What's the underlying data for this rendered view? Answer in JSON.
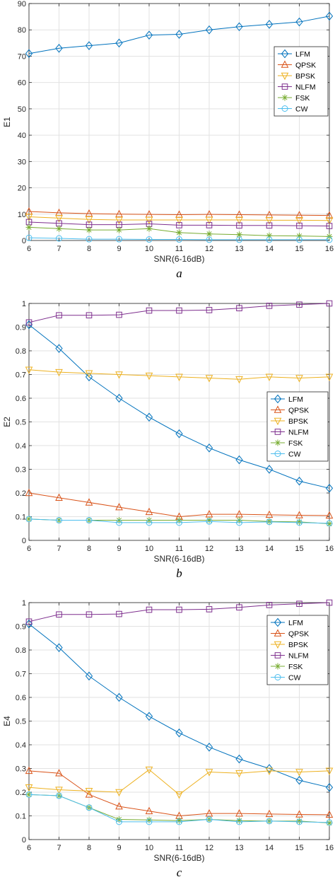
{
  "chart_data": [
    {
      "type": "line",
      "panel_label": "a",
      "xlabel": "SNR(6-16dB)",
      "ylabel": "E1",
      "xlim": [
        6,
        16
      ],
      "ylim": [
        0,
        90
      ],
      "xticks": [
        6,
        7,
        8,
        9,
        10,
        11,
        12,
        13,
        14,
        15,
        16
      ],
      "yticks": [
        0,
        10,
        20,
        30,
        40,
        50,
        60,
        70,
        80,
        90
      ],
      "grid": true,
      "legend_position": "right",
      "x": [
        6,
        7,
        8,
        9,
        10,
        11,
        12,
        13,
        14,
        15,
        16
      ],
      "series": [
        {
          "name": "LFM",
          "color": "#0072BD",
          "marker": "diamond",
          "values": [
            71,
            73,
            74,
            75,
            78,
            78.3,
            80,
            81.2,
            82.1,
            83,
            85.2
          ]
        },
        {
          "name": "QPSK",
          "color": "#D95319",
          "marker": "triangle-up",
          "values": [
            11,
            10.5,
            10.2,
            10,
            9.9,
            9.8,
            9.9,
            9.8,
            9.7,
            9.6,
            9.5
          ]
        },
        {
          "name": "BPSK",
          "color": "#EDB120",
          "marker": "triangle-down",
          "values": [
            9,
            8.5,
            8,
            7.8,
            7.8,
            7.8,
            7.8,
            7.8,
            7.7,
            7.7,
            7.6
          ]
        },
        {
          "name": "NLFM",
          "color": "#7E2F8E",
          "marker": "square",
          "values": [
            7,
            6.5,
            6,
            6,
            6.3,
            5.8,
            5.8,
            5.7,
            5.7,
            5.6,
            5.5
          ]
        },
        {
          "name": "FSK",
          "color": "#77AC30",
          "marker": "star",
          "values": [
            5,
            4.5,
            4,
            4,
            4.5,
            3,
            2.5,
            2.2,
            1.8,
            1.7,
            1.5
          ]
        },
        {
          "name": "CW",
          "color": "#4DBEEE",
          "marker": "circle",
          "values": [
            1,
            0.8,
            0.5,
            0.5,
            0.4,
            0.4,
            0.3,
            0.3,
            0.3,
            0.3,
            0.3
          ]
        }
      ]
    },
    {
      "type": "line",
      "panel_label": "b",
      "xlabel": "SNR(6-16dB)",
      "ylabel": "E2",
      "xlim": [
        6,
        16
      ],
      "ylim": [
        0,
        1
      ],
      "xticks": [
        6,
        7,
        8,
        9,
        10,
        11,
        12,
        13,
        14,
        15,
        16
      ],
      "yticks": [
        0,
        0.1,
        0.2,
        0.3,
        0.4,
        0.5,
        0.6,
        0.7,
        0.8,
        0.9,
        1
      ],
      "grid": true,
      "legend_position": "right",
      "x": [
        6,
        7,
        8,
        9,
        10,
        11,
        12,
        13,
        14,
        15,
        16
      ],
      "series": [
        {
          "name": "LFM",
          "color": "#0072BD",
          "marker": "diamond",
          "values": [
            0.91,
            0.81,
            0.69,
            0.6,
            0.52,
            0.45,
            0.39,
            0.34,
            0.3,
            0.25,
            0.22
          ]
        },
        {
          "name": "QPSK",
          "color": "#D95319",
          "marker": "triangle-up",
          "values": [
            0.2,
            0.18,
            0.16,
            0.14,
            0.12,
            0.1,
            0.11,
            0.11,
            0.108,
            0.106,
            0.105
          ]
        },
        {
          "name": "BPSK",
          "color": "#EDB120",
          "marker": "triangle-down",
          "values": [
            0.72,
            0.71,
            0.705,
            0.7,
            0.695,
            0.69,
            0.685,
            0.68,
            0.69,
            0.685,
            0.69
          ]
        },
        {
          "name": "NLFM",
          "color": "#7E2F8E",
          "marker": "square",
          "values": [
            0.92,
            0.95,
            0.95,
            0.952,
            0.97,
            0.97,
            0.972,
            0.98,
            0.99,
            0.995,
            1
          ]
        },
        {
          "name": "FSK",
          "color": "#77AC30",
          "marker": "star",
          "values": [
            0.09,
            0.085,
            0.085,
            0.085,
            0.085,
            0.085,
            0.085,
            0.085,
            0.08,
            0.078,
            0.07
          ]
        },
        {
          "name": "CW",
          "color": "#4DBEEE",
          "marker": "circle",
          "values": [
            0.09,
            0.085,
            0.085,
            0.075,
            0.075,
            0.075,
            0.08,
            0.075,
            0.078,
            0.075,
            0.072
          ]
        }
      ]
    },
    {
      "type": "line",
      "panel_label": "c",
      "xlabel": "SNR(6-16dB)",
      "ylabel": "E4",
      "xlim": [
        6,
        16
      ],
      "ylim": [
        0,
        1
      ],
      "xticks": [
        6,
        7,
        8,
        9,
        10,
        11,
        12,
        13,
        14,
        15,
        16
      ],
      "yticks": [
        0,
        0.1,
        0.2,
        0.3,
        0.4,
        0.5,
        0.6,
        0.7,
        0.8,
        0.9,
        1
      ],
      "grid": true,
      "legend_position": "top-right",
      "x": [
        6,
        7,
        8,
        9,
        10,
        11,
        12,
        13,
        14,
        15,
        16
      ],
      "series": [
        {
          "name": "LFM",
          "color": "#0072BD",
          "marker": "diamond",
          "values": [
            0.91,
            0.81,
            0.69,
            0.6,
            0.52,
            0.45,
            0.39,
            0.34,
            0.3,
            0.25,
            0.22
          ]
        },
        {
          "name": "QPSK",
          "color": "#D95319",
          "marker": "triangle-up",
          "values": [
            0.29,
            0.28,
            0.19,
            0.14,
            0.12,
            0.1,
            0.11,
            0.11,
            0.108,
            0.106,
            0.105
          ]
        },
        {
          "name": "BPSK",
          "color": "#EDB120",
          "marker": "triangle-down",
          "values": [
            0.22,
            0.21,
            0.205,
            0.2,
            0.295,
            0.19,
            0.285,
            0.28,
            0.29,
            0.285,
            0.29
          ]
        },
        {
          "name": "NLFM",
          "color": "#7E2F8E",
          "marker": "square",
          "values": [
            0.92,
            0.95,
            0.95,
            0.952,
            0.97,
            0.97,
            0.972,
            0.98,
            0.99,
            0.995,
            1
          ]
        },
        {
          "name": "FSK",
          "color": "#77AC30",
          "marker": "star",
          "values": [
            0.19,
            0.185,
            0.135,
            0.085,
            0.083,
            0.08,
            0.085,
            0.08,
            0.078,
            0.078,
            0.07
          ]
        },
        {
          "name": "CW",
          "color": "#4DBEEE",
          "marker": "circle",
          "values": [
            0.19,
            0.185,
            0.135,
            0.075,
            0.075,
            0.075,
            0.085,
            0.075,
            0.078,
            0.075,
            0.072
          ]
        }
      ]
    }
  ]
}
